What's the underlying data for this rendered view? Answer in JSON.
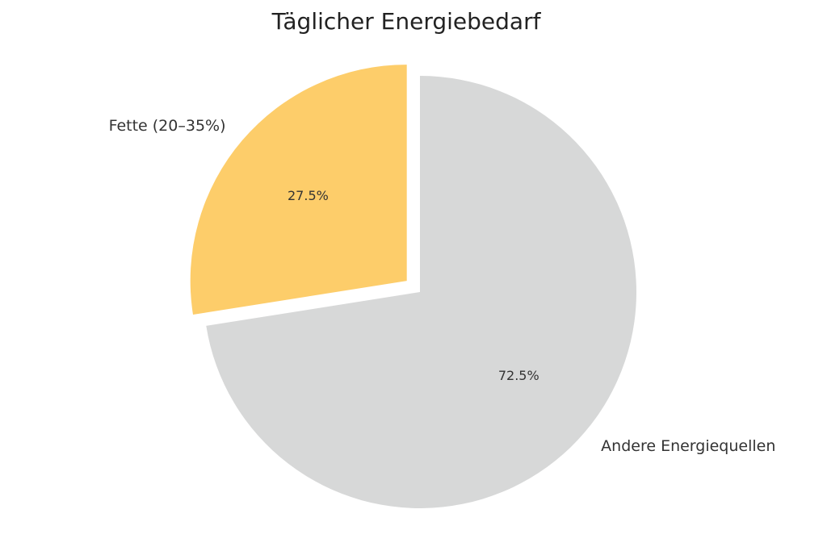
{
  "chart_data": {
    "type": "pie",
    "title": "Täglicher Energiebedarf",
    "categories": [
      "Fette (20–35%)",
      "Andere Energiequellen"
    ],
    "values": [
      27.5,
      72.5
    ],
    "value_labels": [
      "27.5%",
      "72.5%"
    ],
    "colors": [
      "#fdcd6a",
      "#d7d8d8"
    ],
    "explode": [
      0.08,
      0
    ],
    "start_angle": 90
  }
}
